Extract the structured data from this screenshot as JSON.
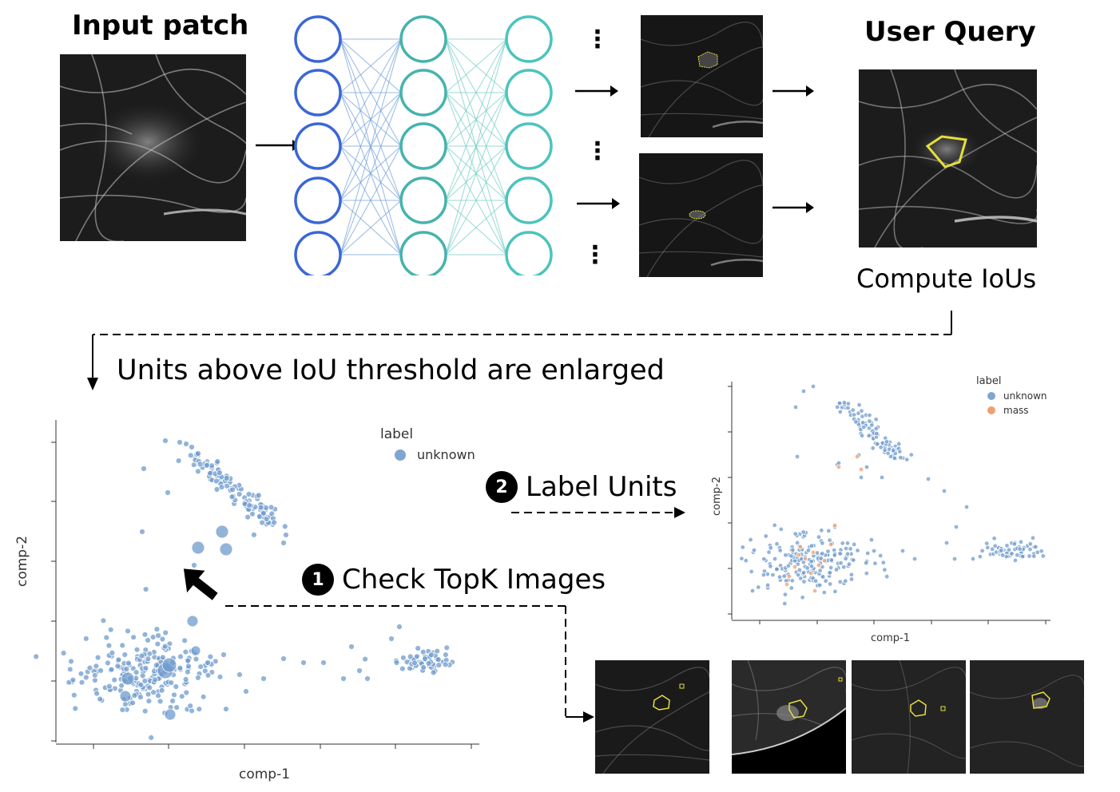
{
  "titles": {
    "input_patch": "Input patch",
    "user_query": "User Query",
    "compute_ious": "Compute IoUs",
    "enlarged": "Units above IoU threshold are enlarged"
  },
  "steps": {
    "check_topk": {
      "number": "1",
      "label": "Check TopK Images"
    },
    "label_units": {
      "number": "2",
      "label": "Label Units"
    }
  },
  "colors": {
    "unknown": "#6f9bcc",
    "mass": "#f0a070",
    "layer1": "#3a67d6",
    "layer2": "#45b3ad",
    "layer3": "#4cc4bd",
    "outline": "#e6e03a"
  },
  "chart_data": [
    {
      "type": "scatter",
      "xlabel": "comp-1",
      "ylabel": "comp-2",
      "legend_title": "label",
      "series": [
        {
          "name": "unknown",
          "color": "#6f9bcc"
        }
      ]
    },
    {
      "type": "scatter",
      "xlabel": "comp-1",
      "ylabel": "comp-2",
      "legend_title": "label",
      "series": [
        {
          "name": "unknown",
          "color": "#6f9bcc"
        },
        {
          "name": "mass",
          "color": "#f0a070"
        }
      ]
    }
  ]
}
